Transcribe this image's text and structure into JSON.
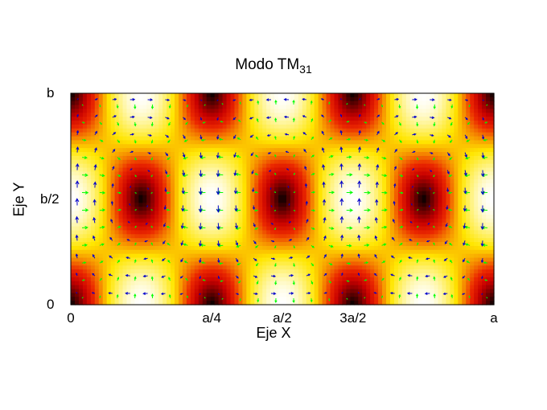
{
  "chart_data": {
    "type": "heatmap",
    "title": "Modo TM",
    "title_subscript": "31",
    "xlabel": "Eje X",
    "ylabel": "Eje Y",
    "x_ticks": [
      {
        "label": "0",
        "value": 0
      },
      {
        "label": "a/4",
        "value": 0.333
      },
      {
        "label": "a/2",
        "value": 0.5
      },
      {
        "label": "3a/2",
        "value": 0.667
      },
      {
        "label": "a",
        "value": 1.0
      }
    ],
    "y_ticks": [
      {
        "label": "0",
        "value": 0
      },
      {
        "label": "b/2",
        "value": 0.5
      },
      {
        "label": "b",
        "value": 1.0
      }
    ],
    "mode": {
      "m": 3,
      "n": 1
    },
    "colormap": "black-red-yellow-white",
    "overlays": [
      {
        "field": "E",
        "color": "#00ff00"
      },
      {
        "field": "H",
        "color": "#0000cc"
      }
    ],
    "grid": false,
    "legend": "none"
  }
}
